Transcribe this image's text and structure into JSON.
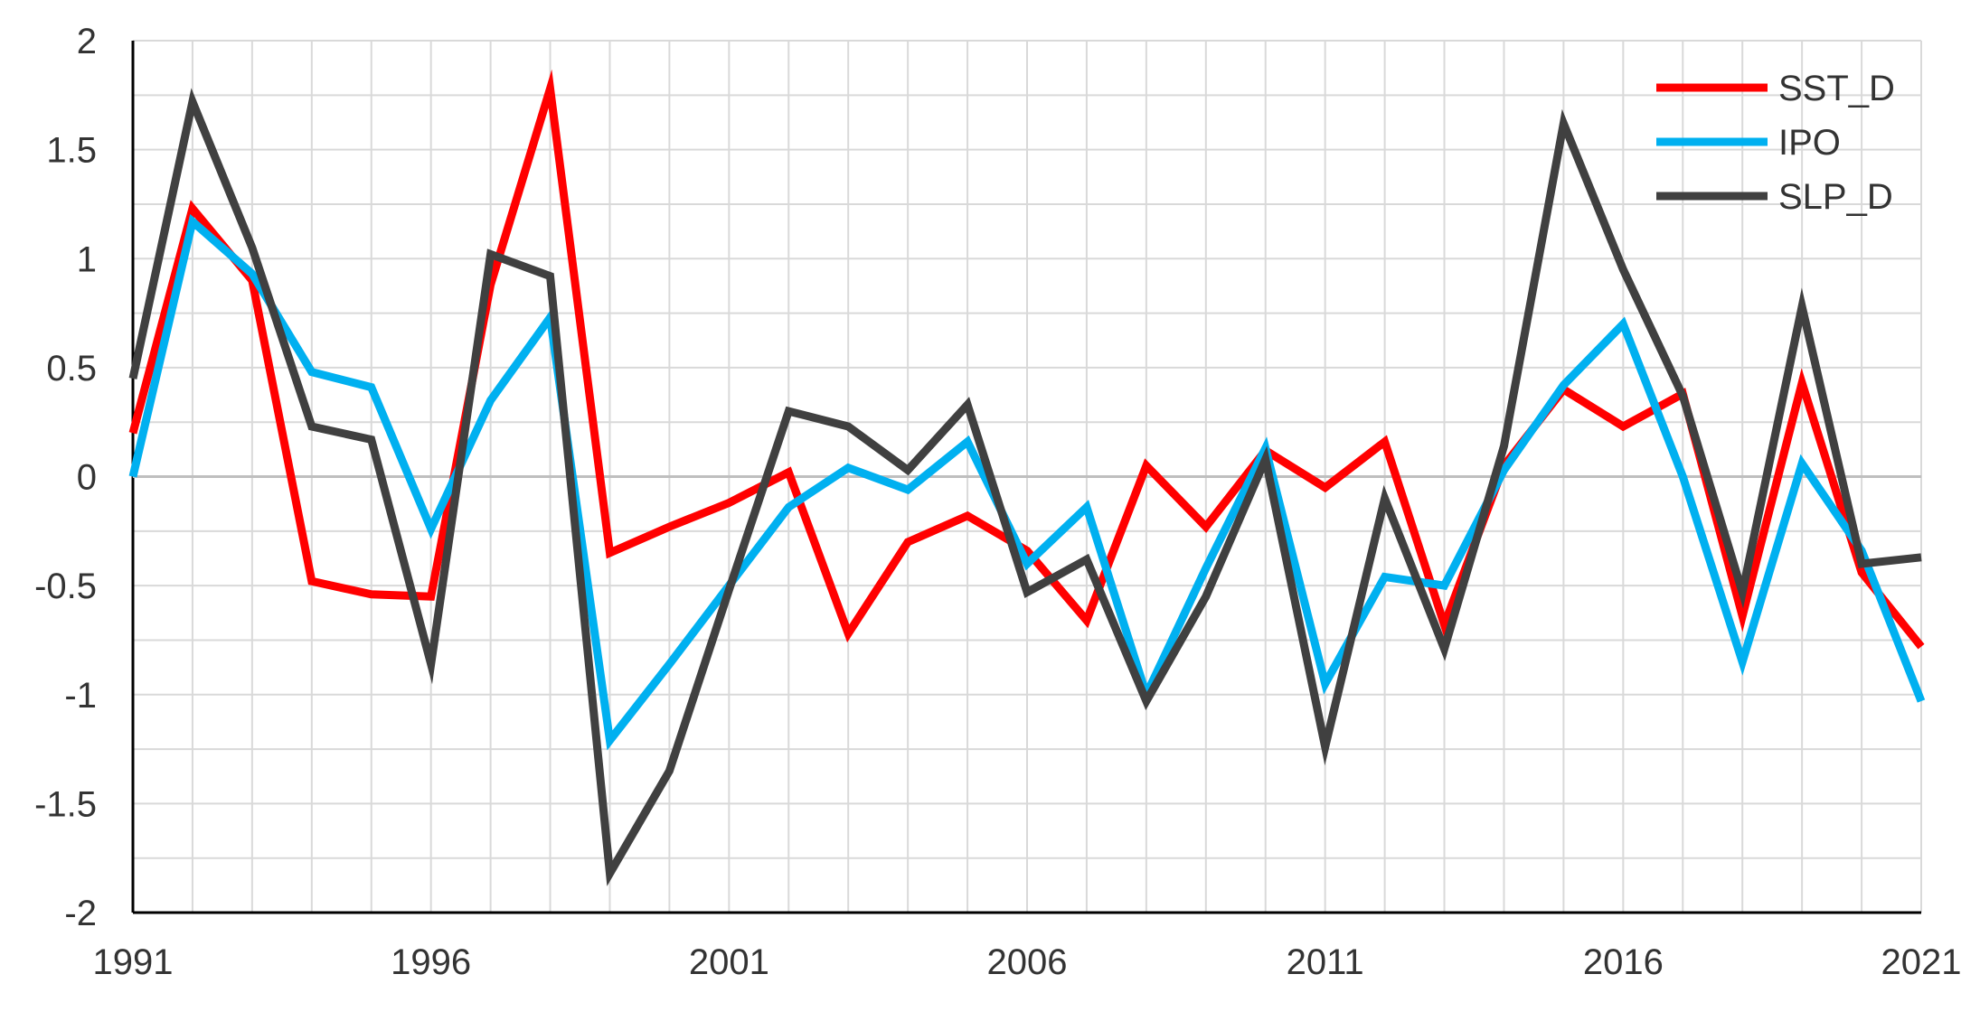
{
  "chart_data": {
    "type": "line",
    "title": "",
    "xlabel": "",
    "ylabel": "",
    "x": [
      1991,
      1992,
      1993,
      1994,
      1995,
      1996,
      1997,
      1998,
      1999,
      2000,
      2001,
      2002,
      2003,
      2004,
      2005,
      2006,
      2007,
      2008,
      2009,
      2010,
      2011,
      2012,
      2013,
      2014,
      2015,
      2016,
      2017,
      2018,
      2019,
      2020,
      2021
    ],
    "x_tick_labels": [
      "1991",
      "1996",
      "2001",
      "2006",
      "2011",
      "2016",
      "2021"
    ],
    "y_tick_labels": [
      "2",
      "1.5",
      "1",
      "0.5",
      "0",
      "-0.5",
      "-1",
      "-1.5",
      "-2"
    ],
    "xlim": [
      1991,
      2021
    ],
    "ylim": [
      -2,
      2
    ],
    "grid": true,
    "legend_position": "top-right",
    "series": [
      {
        "name": "SST_D",
        "color": "#ff0000",
        "values": [
          0.2,
          1.23,
          0.9,
          -0.48,
          -0.54,
          -0.55,
          0.88,
          1.78,
          -0.35,
          -0.23,
          -0.12,
          0.02,
          -0.72,
          -0.3,
          -0.18,
          -0.34,
          -0.66,
          0.05,
          -0.23,
          0.12,
          -0.05,
          0.16,
          -0.68,
          0.05,
          0.4,
          0.23,
          0.38,
          -0.64,
          0.43,
          -0.44,
          -0.78
        ]
      },
      {
        "name": "IPO",
        "color": "#00b0f0",
        "values": [
          0.0,
          1.17,
          0.93,
          0.48,
          0.41,
          -0.24,
          0.35,
          0.73,
          -1.21,
          -0.86,
          -0.5,
          -0.14,
          0.04,
          -0.06,
          0.16,
          -0.4,
          -0.14,
          -1.0,
          -0.42,
          0.13,
          -0.95,
          -0.46,
          -0.5,
          0.03,
          0.42,
          0.7,
          0.0,
          -0.85,
          0.06,
          -0.34,
          -1.03
        ]
      },
      {
        "name": "SLP_D",
        "color": "#404040",
        "values": [
          0.45,
          1.72,
          1.05,
          0.23,
          0.17,
          -0.86,
          1.02,
          0.92,
          -1.82,
          -1.35,
          -0.52,
          0.3,
          0.23,
          0.03,
          0.33,
          -0.53,
          -0.38,
          -1.03,
          -0.55,
          0.08,
          -1.24,
          -0.1,
          -0.79,
          0.14,
          1.62,
          0.95,
          0.37,
          -0.53,
          0.78,
          -0.4,
          -0.37
        ]
      }
    ]
  }
}
